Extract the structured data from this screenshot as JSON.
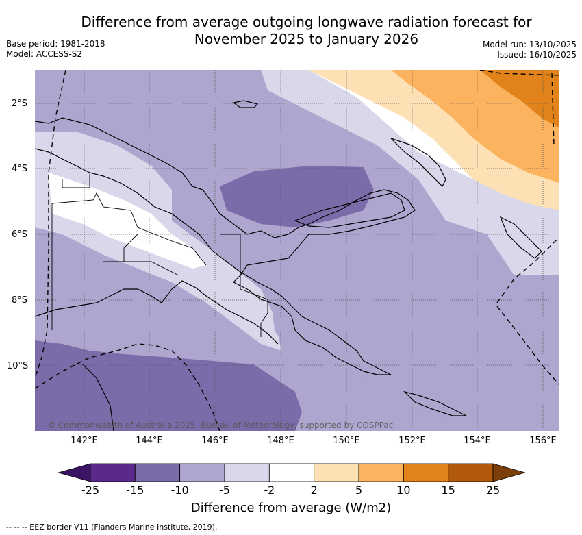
{
  "title_line1": "Difference from average outgoing longwave radiation forecast for",
  "title_line2": "November 2025 to January 2026",
  "base_period": "Base period: 1981-2018",
  "model": "Model: ACCESS-S2",
  "model_run": "Model run: 13/10/2025",
  "issued": "Issued: 16/10/2025",
  "copyright": "© Commonwealth of Australia 2025, Bureau of Meteorology, supported by COSPPac",
  "lat_labels": [
    "2°S",
    "4°S",
    "6°S",
    "8°S",
    "10°S"
  ],
  "lon_labels": [
    "142°E",
    "144°E",
    "146°E",
    "148°E",
    "150°E",
    "152°E",
    "154°E",
    "156°E"
  ],
  "colorbar": {
    "ticks": [
      "-25",
      "-15",
      "-10",
      "-5",
      "-2",
      "2",
      "5",
      "10",
      "15",
      "25"
    ],
    "colors": [
      "#3b1466",
      "#5a2a8a",
      "#7b6ba9",
      "#aea6cf",
      "#d8d8ea",
      "#ffffff",
      "#fde0b3",
      "#fbb360",
      "#e2821a",
      "#b15a0c",
      "#7c3f0a"
    ],
    "label": "Difference from average (W/m2)"
  },
  "legend_eez": "--  --  -- EEZ border V11 (Flanders Marine Institute, 2019)."
}
